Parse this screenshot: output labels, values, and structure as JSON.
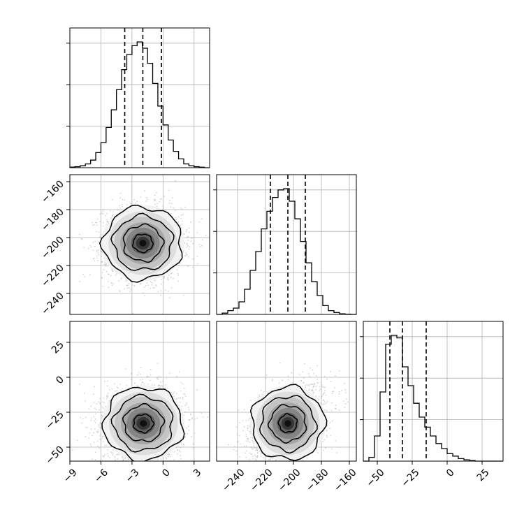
{
  "chart_data": {
    "type": "corner",
    "title": "",
    "parameters": [
      {
        "name": "",
        "range": [
          -9,
          4.5
        ],
        "ticks": [
          -9,
          -6,
          -3,
          0,
          3
        ],
        "tick_labels": [
          "−9",
          "−6",
          "−3",
          "0",
          "3"
        ],
        "quantiles": [
          -3.7,
          -1.95,
          -0.15
        ],
        "histogram": {
          "bin_start": -9,
          "bin_width": 0.5,
          "heights": [
            0.005,
            0.008,
            0.015,
            0.03,
            0.06,
            0.12,
            0.2,
            0.32,
            0.46,
            0.62,
            0.78,
            0.9,
            0.97,
            1.0,
            0.95,
            0.83,
            0.67,
            0.49,
            0.34,
            0.22,
            0.13,
            0.07,
            0.03,
            0.015,
            0.008,
            0.004,
            0.0
          ]
        }
      },
      {
        "name": "",
        "range": [
          -255,
          -155
        ],
        "ticks": [
          -240,
          -220,
          -200,
          -180,
          -160
        ],
        "tick_labels": [
          "−240",
          "−220",
          "−200",
          "−180",
          "−160"
        ],
        "quantiles": [
          -216.5,
          -204,
          -191.5
        ],
        "histogram": {
          "bin_start": -255,
          "bin_width": 4,
          "heights": [
            0.0,
            0.01,
            0.03,
            0.05,
            0.1,
            0.2,
            0.35,
            0.5,
            0.68,
            0.82,
            0.93,
            0.99,
            1.0,
            0.9,
            0.76,
            0.58,
            0.41,
            0.26,
            0.15,
            0.07,
            0.03,
            0.015,
            0.005,
            0.002,
            0.0
          ]
        }
      },
      {
        "name": "",
        "range": [
          -60,
          40
        ],
        "ticks": [
          -50,
          -25,
          0,
          25
        ],
        "tick_labels": [
          "−50",
          "−25",
          "0",
          "25"
        ],
        "quantiles": [
          -41,
          -32,
          -15
        ],
        "histogram": {
          "bin_start": -60,
          "bin_width": 4,
          "heights": [
            0.0,
            0.03,
            0.2,
            0.55,
            0.93,
            1.0,
            0.98,
            0.75,
            0.6,
            0.46,
            0.35,
            0.27,
            0.2,
            0.14,
            0.1,
            0.06,
            0.04,
            0.02,
            0.01,
            0.005,
            0.0,
            0.0,
            0.0,
            0.0,
            0.0
          ]
        }
      }
    ],
    "pairs": [
      {
        "x_param": 0,
        "y_param": 1,
        "x_center": -1.95,
        "y_center": -204,
        "x_sd": 1.9,
        "y_sd": 13,
        "corr": 0.0
      },
      {
        "x_param": 0,
        "y_param": 2,
        "x_center": -1.9,
        "y_center": -33,
        "x_sd": 1.9,
        "y_sd": 13,
        "corr": 0.0
      },
      {
        "x_param": 1,
        "y_param": 2,
        "x_center": -204,
        "y_center": -33,
        "x_sd": 13,
        "y_sd": 13,
        "corr": 0.38
      }
    ],
    "contour_levels_sigma": [
      0.5,
      1.0,
      1.5,
      2.0
    ],
    "grid": true,
    "histogram_style": "step",
    "quantile_line_style": "dashed",
    "line_color": "#000000",
    "point_color": "#b0b0b0",
    "grid_color": "#b0b0b0"
  }
}
